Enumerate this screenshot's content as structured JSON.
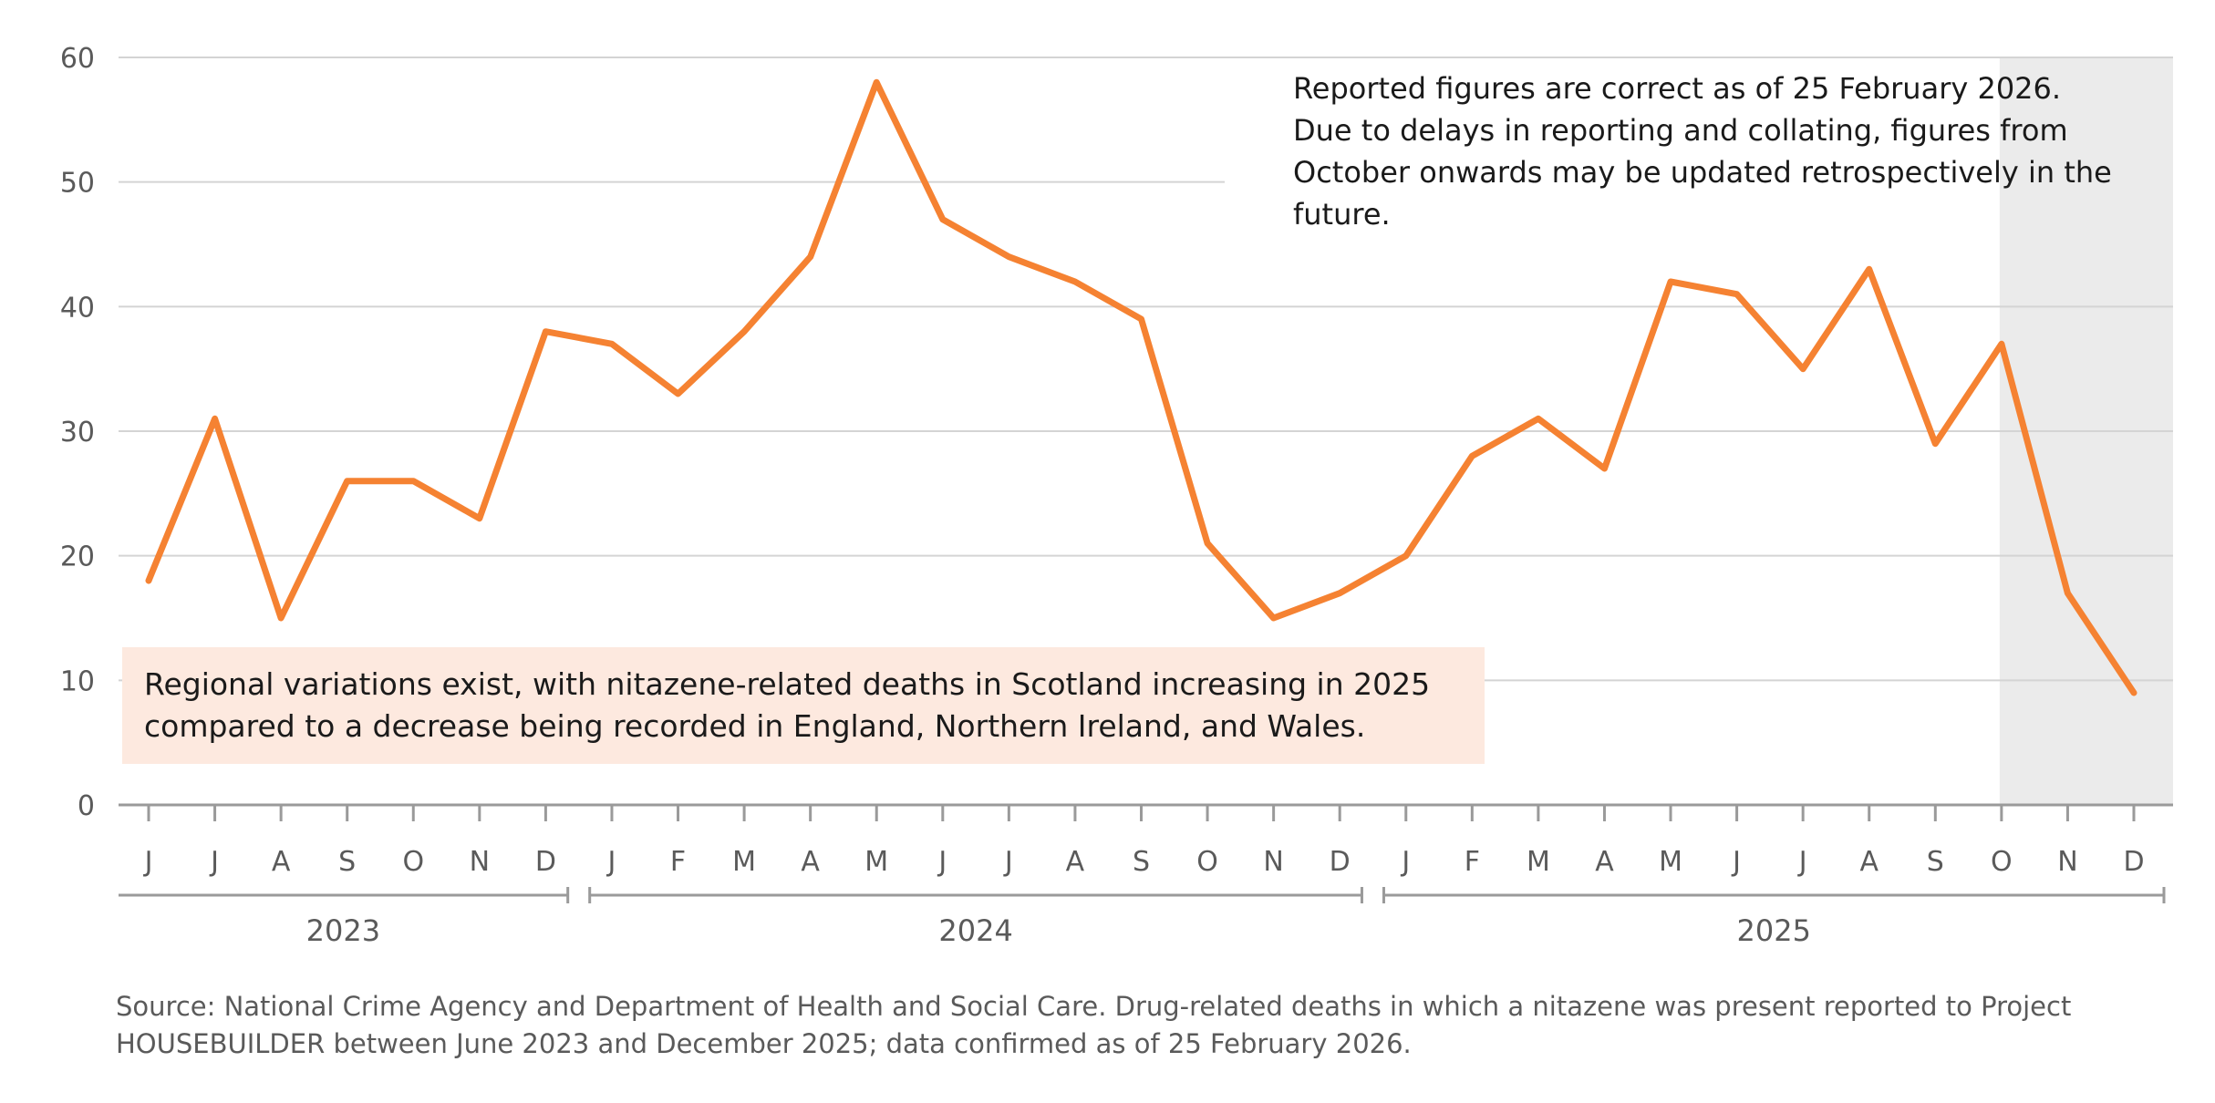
{
  "chart_data": {
    "type": "line",
    "y_ticks": [
      0,
      10,
      20,
      30,
      40,
      50,
      60
    ],
    "ylim": [
      0,
      60
    ],
    "grid": true,
    "line_color": "#f58232",
    "shade_color": "#ebebeb",
    "callout_color": "#fde9df",
    "month_labels": [
      "J",
      "J",
      "A",
      "S",
      "O",
      "N",
      "D",
      "J",
      "F",
      "M",
      "A",
      "M",
      "J",
      "J",
      "A",
      "S",
      "O",
      "N",
      "D",
      "J",
      "F",
      "M",
      "A",
      "M",
      "J",
      "J",
      "A",
      "S",
      "O",
      "N",
      "D"
    ],
    "values": [
      18,
      31,
      15,
      26,
      26,
      23,
      38,
      37,
      33,
      38,
      44,
      58,
      47,
      44,
      42,
      39,
      21,
      15,
      17,
      20,
      28,
      31,
      27,
      42,
      41,
      35,
      43,
      29,
      37,
      17,
      9
    ],
    "years": [
      {
        "label": "2023",
        "start_index": 0,
        "end_index": 6
      },
      {
        "label": "2024",
        "start_index": 7,
        "end_index": 18
      },
      {
        "label": "2025",
        "start_index": 19,
        "end_index": 30
      }
    ],
    "shaded_region": {
      "start_index": 28,
      "end_index": 30
    },
    "note": [
      "Reported figures are correct as of 25 February 2026.",
      "Due to delays in reporting and collating, figures from",
      "October onwards may be updated retrospectively in the",
      "future."
    ],
    "callout": [
      "Regional variations exist, with nitazene-related deaths in Scotland increasing in 2025",
      "compared to a decrease being recorded in England, Northern Ireland, and Wales."
    ]
  },
  "source": [
    "Source: National Crime Agency and Department of Health and Social Care. Drug-related deaths in which a nitazene was present reported to Project",
    "HOUSEBUILDER between June 2023 and December 2025; data confirmed as of 25 February 2026."
  ]
}
